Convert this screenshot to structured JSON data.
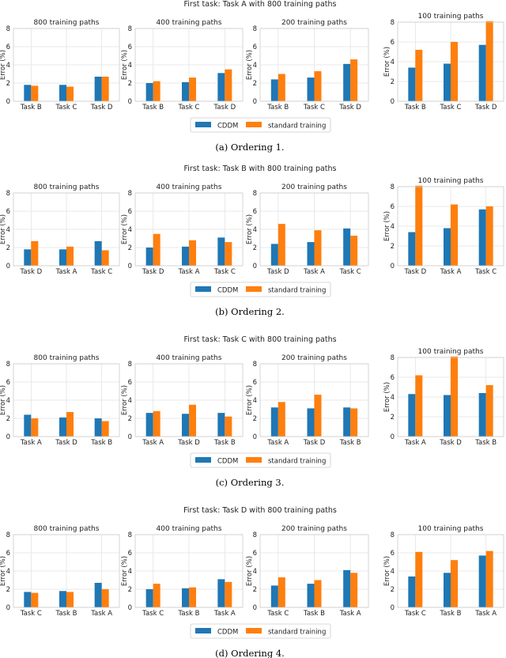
{
  "colors": {
    "cddm": "#1f77b4",
    "standard": "#ff7f0e"
  },
  "chart_data": [
    {
      "type": "bar",
      "title": "First task: Task A with 800 training paths",
      "caption": "(a) Ordering 1.",
      "legend": [
        "CDDM",
        "standard training"
      ],
      "panels": [
        {
          "title": "800 training paths",
          "ylabel": "Error (%)",
          "ylim": [
            0,
            8
          ],
          "yticks": [
            0,
            2,
            4,
            6,
            8
          ],
          "categories": [
            "Task B",
            "Task C",
            "Task D"
          ],
          "series": [
            {
              "name": "CDDM",
              "values": [
                1.8,
                1.8,
                2.7
              ]
            },
            {
              "name": "standard training",
              "values": [
                1.7,
                1.6,
                2.7
              ]
            }
          ]
        },
        {
          "title": "400 training paths",
          "ylabel": "Error (%)",
          "ylim": [
            0,
            8
          ],
          "yticks": [
            0,
            2,
            4,
            6,
            8
          ],
          "categories": [
            "Task B",
            "Task C",
            "Task D"
          ],
          "series": [
            {
              "name": "CDDM",
              "values": [
                2.0,
                2.1,
                3.1
              ]
            },
            {
              "name": "standard training",
              "values": [
                2.2,
                2.6,
                3.5
              ]
            }
          ]
        },
        {
          "title": "200 training paths",
          "ylabel": "Error (%)",
          "ylim": [
            0,
            8
          ],
          "yticks": [
            0,
            2,
            4,
            6,
            8
          ],
          "categories": [
            "Task B",
            "Task C",
            "Task D"
          ],
          "series": [
            {
              "name": "CDDM",
              "values": [
                2.4,
                2.6,
                4.1
              ]
            },
            {
              "name": "standard training",
              "values": [
                3.0,
                3.3,
                4.6
              ]
            }
          ]
        },
        {
          "title": "100 training paths",
          "ylabel": "Error (%)",
          "ylim": [
            0,
            8
          ],
          "yticks": [
            0,
            2,
            4,
            6,
            8
          ],
          "categories": [
            "Task B",
            "Task C",
            "Task D"
          ],
          "series": [
            {
              "name": "CDDM",
              "values": [
                3.4,
                3.8,
                5.7
              ]
            },
            {
              "name": "standard training",
              "values": [
                5.2,
                6.0,
                8.1
              ]
            }
          ]
        }
      ]
    },
    {
      "type": "bar",
      "title": "First task: Task B with 800 training paths",
      "caption": "(b) Ordering 2.",
      "legend": [
        "CDDM",
        "standard training"
      ],
      "panels": [
        {
          "title": "800 training paths",
          "ylabel": "Error (%)",
          "ylim": [
            0,
            8
          ],
          "yticks": [
            0,
            2,
            4,
            6,
            8
          ],
          "categories": [
            "Task D",
            "Task A",
            "Task C"
          ],
          "series": [
            {
              "name": "CDDM",
              "values": [
                1.8,
                1.8,
                2.7
              ]
            },
            {
              "name": "standard training",
              "values": [
                2.7,
                2.1,
                1.7
              ]
            }
          ]
        },
        {
          "title": "400 training paths",
          "ylabel": "Error (%)",
          "ylim": [
            0,
            8
          ],
          "yticks": [
            0,
            2,
            4,
            6,
            8
          ],
          "categories": [
            "Task D",
            "Task A",
            "Task C"
          ],
          "series": [
            {
              "name": "CDDM",
              "values": [
                2.0,
                2.1,
                3.1
              ]
            },
            {
              "name": "standard training",
              "values": [
                3.5,
                2.8,
                2.6
              ]
            }
          ]
        },
        {
          "title": "200 training paths",
          "ylabel": "Error (%)",
          "ylim": [
            0,
            8
          ],
          "yticks": [
            0,
            2,
            4,
            6,
            8
          ],
          "categories": [
            "Task D",
            "Task A",
            "Task C"
          ],
          "series": [
            {
              "name": "CDDM",
              "values": [
                2.4,
                2.6,
                4.1
              ]
            },
            {
              "name": "standard training",
              "values": [
                4.6,
                3.9,
                3.3
              ]
            }
          ]
        },
        {
          "title": "100 training paths",
          "ylabel": "Error (%)",
          "ylim": [
            0,
            8
          ],
          "yticks": [
            0,
            2,
            4,
            6,
            8
          ],
          "categories": [
            "Task D",
            "Task A",
            "Task C"
          ],
          "series": [
            {
              "name": "CDDM",
              "values": [
                3.4,
                3.8,
                5.7
              ]
            },
            {
              "name": "standard training",
              "values": [
                8.1,
                6.2,
                6.0
              ]
            }
          ]
        }
      ]
    },
    {
      "type": "bar",
      "title": "First task: Task C with 800 training paths",
      "caption": "(c) Ordering 3.",
      "legend": [
        "CDDM",
        "standard training"
      ],
      "panels": [
        {
          "title": "800 training paths",
          "ylabel": "Error (%)",
          "ylim": [
            0,
            8
          ],
          "yticks": [
            0,
            2,
            4,
            6,
            8
          ],
          "categories": [
            "Task A",
            "Task D",
            "Task B"
          ],
          "series": [
            {
              "name": "CDDM",
              "values": [
                2.4,
                2.1,
                2.0
              ]
            },
            {
              "name": "standard training",
              "values": [
                2.0,
                2.7,
                1.7
              ]
            }
          ]
        },
        {
          "title": "400 training paths",
          "ylabel": "Error (%)",
          "ylim": [
            0,
            8
          ],
          "yticks": [
            0,
            2,
            4,
            6,
            8
          ],
          "categories": [
            "Task A",
            "Task D",
            "Task B"
          ],
          "series": [
            {
              "name": "CDDM",
              "values": [
                2.6,
                2.5,
                2.6
              ]
            },
            {
              "name": "standard training",
              "values": [
                2.8,
                3.5,
                2.2
              ]
            }
          ]
        },
        {
          "title": "200 training paths",
          "ylabel": "Error (%)",
          "ylim": [
            0,
            8
          ],
          "yticks": [
            0,
            2,
            4,
            6,
            8
          ],
          "categories": [
            "Task A",
            "Task D",
            "Task B"
          ],
          "series": [
            {
              "name": "CDDM",
              "values": [
                3.2,
                3.1,
                3.2
              ]
            },
            {
              "name": "standard training",
              "values": [
                3.8,
                4.6,
                3.1
              ]
            }
          ]
        },
        {
          "title": "100 training paths",
          "ylabel": "Error (%)",
          "ylim": [
            0,
            8
          ],
          "yticks": [
            0,
            2,
            4,
            6,
            8
          ],
          "categories": [
            "Task A",
            "Task D",
            "Task B"
          ],
          "series": [
            {
              "name": "CDDM",
              "values": [
                4.3,
                4.2,
                4.4
              ]
            },
            {
              "name": "standard training",
              "values": [
                6.2,
                8.1,
                5.2
              ]
            }
          ]
        }
      ]
    },
    {
      "type": "bar",
      "title": "First task: Task D with 800 training paths",
      "caption": "(d) Ordering 4.",
      "legend": [
        "CDDM",
        "standard training"
      ],
      "panels": [
        {
          "title": "800 training paths",
          "ylabel": "Error (%)",
          "ylim": [
            0,
            8
          ],
          "yticks": [
            0,
            2,
            4,
            6,
            8
          ],
          "categories": [
            "Task C",
            "Task B",
            "Task A"
          ],
          "series": [
            {
              "name": "CDDM",
              "values": [
                1.7,
                1.8,
                2.7
              ]
            },
            {
              "name": "standard training",
              "values": [
                1.6,
                1.7,
                2.0
              ]
            }
          ]
        },
        {
          "title": "400 training paths",
          "ylabel": "Error (%)",
          "ylim": [
            0,
            8
          ],
          "yticks": [
            0,
            2,
            4,
            6,
            8
          ],
          "categories": [
            "Task C",
            "Task B",
            "Task A"
          ],
          "series": [
            {
              "name": "CDDM",
              "values": [
                2.0,
                2.1,
                3.1
              ]
            },
            {
              "name": "standard training",
              "values": [
                2.6,
                2.2,
                2.8
              ]
            }
          ]
        },
        {
          "title": "200 training paths",
          "ylabel": "Error (%)",
          "ylim": [
            0,
            8
          ],
          "yticks": [
            0,
            2,
            4,
            6,
            8
          ],
          "categories": [
            "Task C",
            "Task B",
            "Task A"
          ],
          "series": [
            {
              "name": "CDDM",
              "values": [
                2.4,
                2.6,
                4.1
              ]
            },
            {
              "name": "standard training",
              "values": [
                3.3,
                3.0,
                3.8
              ]
            }
          ]
        },
        {
          "title": "100 training paths",
          "ylabel": "Error (%)",
          "ylim": [
            0,
            8
          ],
          "yticks": [
            0,
            2,
            4,
            6,
            8
          ],
          "categories": [
            "Task C",
            "Task B",
            "Task A"
          ],
          "series": [
            {
              "name": "CDDM",
              "values": [
                3.4,
                3.8,
                5.7
              ]
            },
            {
              "name": "standard training",
              "values": [
                6.1,
                5.2,
                6.2
              ]
            }
          ]
        }
      ]
    }
  ]
}
